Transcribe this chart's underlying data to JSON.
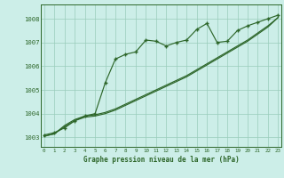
{
  "title": "Graphe pression niveau de la mer (hPa)",
  "bg_color": "#cceee8",
  "grid_color": "#99ccbb",
  "line_color": "#2d6629",
  "x_labels": [
    "0",
    "1",
    "2",
    "3",
    "4",
    "5",
    "6",
    "7",
    "8",
    "9",
    "10",
    "11",
    "12",
    "13",
    "14",
    "15",
    "16",
    "17",
    "18",
    "19",
    "20",
    "21",
    "22",
    "23"
  ],
  "ylim": [
    1002.6,
    1008.6
  ],
  "xlim": [
    -0.3,
    23.3
  ],
  "yticks": [
    1003,
    1004,
    1005,
    1006,
    1007,
    1008
  ],
  "series1": [
    1003.1,
    1003.2,
    1003.4,
    1003.7,
    1003.9,
    1004.0,
    1005.3,
    1006.3,
    1006.5,
    1006.6,
    1007.1,
    1007.05,
    1006.85,
    1007.0,
    1007.1,
    1007.55,
    1007.8,
    1007.0,
    1007.05,
    1007.5,
    1007.7,
    1007.85,
    1008.0,
    1008.15
  ],
  "series2": [
    1003.05,
    1003.15,
    1003.5,
    1003.75,
    1003.9,
    1003.95,
    1004.05,
    1004.2,
    1004.4,
    1004.6,
    1004.8,
    1005.0,
    1005.2,
    1005.4,
    1005.6,
    1005.85,
    1006.1,
    1006.35,
    1006.6,
    1006.85,
    1007.1,
    1007.4,
    1007.7,
    1008.05
  ],
  "series3": [
    1003.05,
    1003.15,
    1003.45,
    1003.7,
    1003.85,
    1003.9,
    1004.0,
    1004.15,
    1004.35,
    1004.55,
    1004.75,
    1004.95,
    1005.15,
    1005.35,
    1005.55,
    1005.8,
    1006.05,
    1006.3,
    1006.55,
    1006.8,
    1007.05,
    1007.35,
    1007.65,
    1008.05
  ]
}
